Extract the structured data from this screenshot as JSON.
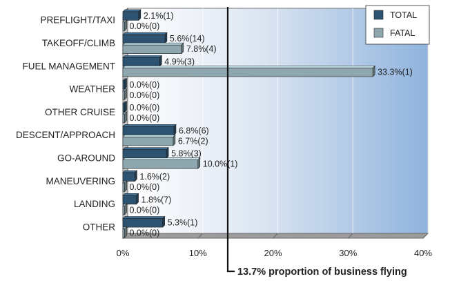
{
  "chart_data": {
    "type": "bar",
    "orientation": "horizontal",
    "categories": [
      "PREFLIGHT/TAXI",
      "TAKEOFF/CLIMB",
      "FUEL MANAGEMENT",
      "WEATHER",
      "OTHER CRUISE",
      "DESCENT/APPROACH",
      "GO-AROUND",
      "MANEUVERING",
      "LANDING",
      "OTHER"
    ],
    "series": [
      {
        "name": "TOTAL",
        "color": "#2e5370",
        "values": [
          2.1,
          5.6,
          4.9,
          0.0,
          0.0,
          6.8,
          5.8,
          1.6,
          1.8,
          5.3
        ],
        "labels": [
          "2.1%(1)",
          "5.6%(14)",
          "4.9%(3)",
          "0.0%(0)",
          "0.0%(0)",
          "6.8%(6)",
          "5.8%(3)",
          "1.6%(2)",
          "1.8%(7)",
          "5.3%(1)"
        ]
      },
      {
        "name": "FATAL",
        "color": "#8ea6ad",
        "values": [
          0.0,
          7.8,
          33.3,
          0.0,
          0.0,
          6.7,
          10.0,
          0.0,
          0.0,
          0.0
        ],
        "labels": [
          "0.0%(0)",
          "7.8%(4)",
          "33.3%(1)",
          "0.0%(0)",
          "0.0%(0)",
          "6.7%(2)",
          "10.0%(1)",
          "0.0%(0)",
          "0.0%(0)",
          "0.0%(0)"
        ]
      }
    ],
    "xlim": [
      0,
      40
    ],
    "xticks": [
      "0%",
      "10%",
      "20%",
      "30%",
      "40%"
    ],
    "legend": {
      "position": "top-right",
      "items": [
        "TOTAL",
        "FATAL"
      ]
    },
    "reference_line": {
      "value": 13.7,
      "label": "13.7% proportion of business flying"
    },
    "grid": true,
    "background": "gradient white to light blue"
  }
}
